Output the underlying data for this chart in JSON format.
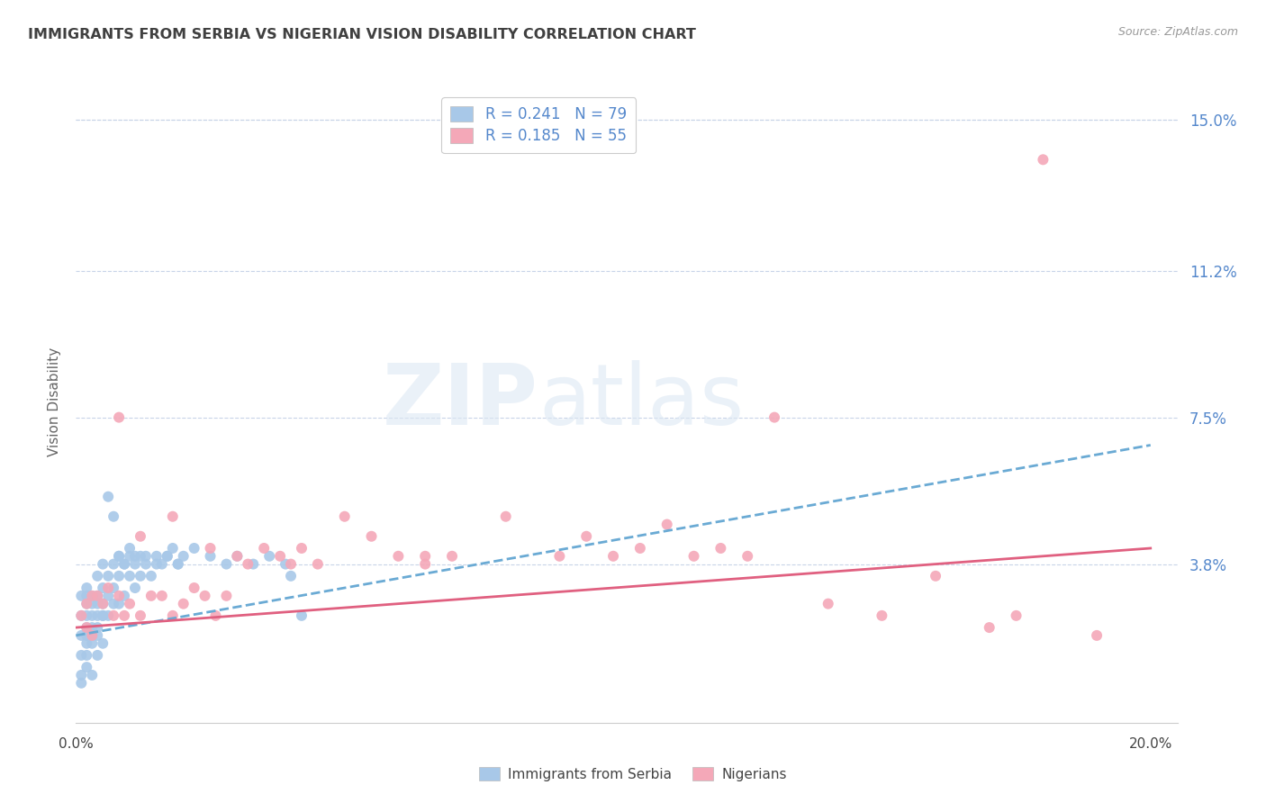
{
  "title": "IMMIGRANTS FROM SERBIA VS NIGERIAN VISION DISABILITY CORRELATION CHART",
  "source": "Source: ZipAtlas.com",
  "ylabel": "Vision Disability",
  "xlim": [
    0.0,
    0.205
  ],
  "ylim": [
    -0.002,
    0.16
  ],
  "plot_ylim": [
    0.0,
    0.155
  ],
  "yticks": [
    0.038,
    0.075,
    0.112,
    0.15
  ],
  "ytick_labels": [
    "3.8%",
    "7.5%",
    "11.2%",
    "15.0%"
  ],
  "series1_label": "Immigrants from Serbia",
  "series1_color": "#a8c8e8",
  "series1_line_color": "#6aaad4",
  "series1_R": "0.241",
  "series1_N": "79",
  "series2_label": "Nigerians",
  "series2_color": "#f4a8b8",
  "series2_line_color": "#e06080",
  "series2_R": "0.185",
  "series2_N": "55",
  "background_color": "#ffffff",
  "grid_color": "#c8d4e8",
  "title_color": "#404040",
  "trend1_x0": 0.0,
  "trend1_y0": 0.02,
  "trend1_x1": 0.2,
  "trend1_y1": 0.068,
  "trend2_x0": 0.0,
  "trend2_y0": 0.022,
  "trend2_x1": 0.2,
  "trend2_y1": 0.042,
  "series1_x": [
    0.001,
    0.001,
    0.001,
    0.001,
    0.002,
    0.002,
    0.002,
    0.002,
    0.002,
    0.002,
    0.002,
    0.003,
    0.003,
    0.003,
    0.003,
    0.003,
    0.004,
    0.004,
    0.004,
    0.004,
    0.004,
    0.005,
    0.005,
    0.005,
    0.005,
    0.006,
    0.006,
    0.006,
    0.007,
    0.007,
    0.007,
    0.008,
    0.008,
    0.008,
    0.009,
    0.009,
    0.01,
    0.01,
    0.011,
    0.011,
    0.012,
    0.012,
    0.013,
    0.014,
    0.015,
    0.016,
    0.017,
    0.018,
    0.019,
    0.02,
    0.001,
    0.001,
    0.002,
    0.002,
    0.003,
    0.003,
    0.004,
    0.004,
    0.005,
    0.005,
    0.006,
    0.007,
    0.008,
    0.009,
    0.01,
    0.011,
    0.013,
    0.015,
    0.017,
    0.019,
    0.022,
    0.025,
    0.028,
    0.03,
    0.033,
    0.036,
    0.039,
    0.04,
    0.042
  ],
  "series1_y": [
    0.02,
    0.025,
    0.03,
    0.015,
    0.022,
    0.028,
    0.025,
    0.032,
    0.018,
    0.03,
    0.02,
    0.025,
    0.03,
    0.02,
    0.028,
    0.022,
    0.03,
    0.028,
    0.035,
    0.022,
    0.025,
    0.032,
    0.028,
    0.038,
    0.025,
    0.035,
    0.03,
    0.025,
    0.038,
    0.032,
    0.028,
    0.04,
    0.035,
    0.028,
    0.038,
    0.03,
    0.042,
    0.035,
    0.04,
    0.032,
    0.04,
    0.035,
    0.038,
    0.035,
    0.04,
    0.038,
    0.04,
    0.042,
    0.038,
    0.04,
    0.01,
    0.008,
    0.012,
    0.015,
    0.018,
    0.01,
    0.02,
    0.015,
    0.025,
    0.018,
    0.055,
    0.05,
    0.04,
    0.038,
    0.04,
    0.038,
    0.04,
    0.038,
    0.04,
    0.038,
    0.042,
    0.04,
    0.038,
    0.04,
    0.038,
    0.04,
    0.038,
    0.035,
    0.025
  ],
  "series2_x": [
    0.001,
    0.002,
    0.002,
    0.003,
    0.003,
    0.004,
    0.005,
    0.006,
    0.007,
    0.008,
    0.009,
    0.01,
    0.012,
    0.014,
    0.016,
    0.018,
    0.02,
    0.022,
    0.024,
    0.026,
    0.028,
    0.03,
    0.032,
    0.035,
    0.038,
    0.04,
    0.042,
    0.045,
    0.05,
    0.055,
    0.06,
    0.065,
    0.07,
    0.08,
    0.09,
    0.095,
    0.1,
    0.105,
    0.11,
    0.115,
    0.12,
    0.125,
    0.13,
    0.14,
    0.15,
    0.16,
    0.17,
    0.175,
    0.18,
    0.19,
    0.008,
    0.012,
    0.065,
    0.018,
    0.025
  ],
  "series2_y": [
    0.025,
    0.028,
    0.022,
    0.03,
    0.02,
    0.03,
    0.028,
    0.032,
    0.025,
    0.03,
    0.025,
    0.028,
    0.025,
    0.03,
    0.03,
    0.025,
    0.028,
    0.032,
    0.03,
    0.025,
    0.03,
    0.04,
    0.038,
    0.042,
    0.04,
    0.038,
    0.042,
    0.038,
    0.05,
    0.045,
    0.04,
    0.038,
    0.04,
    0.05,
    0.04,
    0.045,
    0.04,
    0.042,
    0.048,
    0.04,
    0.042,
    0.04,
    0.075,
    0.028,
    0.025,
    0.035,
    0.022,
    0.025,
    0.14,
    0.02,
    0.075,
    0.045,
    0.04,
    0.05,
    0.042
  ]
}
